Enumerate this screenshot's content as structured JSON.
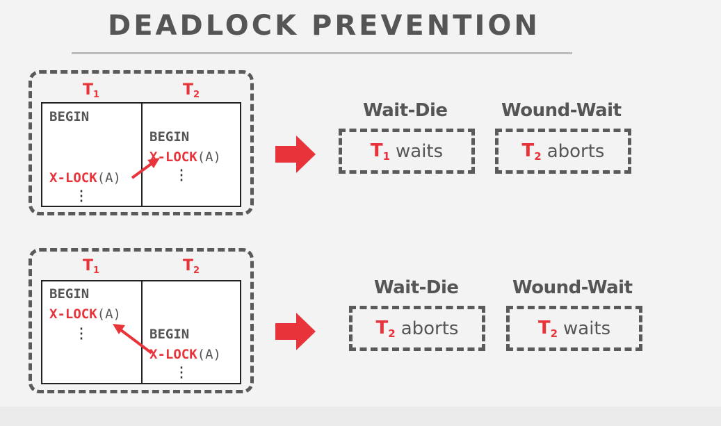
{
  "title": "DEADLOCK PREVENTION",
  "scenarios": [
    {
      "t1_label": "T",
      "t1_sub": "1",
      "t2_label": "T",
      "t2_sub": "2",
      "t1_lines": {
        "begin": "BEGIN",
        "lock_kw": "X-LOCK",
        "lock_arg": "(A)"
      },
      "t2_lines": {
        "begin": "BEGIN",
        "lock_kw": "X-LOCK",
        "lock_arg": "(A)"
      },
      "wait_die_label": "Wait-Die",
      "wound_wait_label": "Wound-Wait",
      "wait_die_result": {
        "txn": "T",
        "sub": "1",
        "action": "waits"
      },
      "wound_wait_result": {
        "txn": "T",
        "sub": "2",
        "action": "aborts"
      }
    },
    {
      "t1_label": "T",
      "t1_sub": "1",
      "t2_label": "T",
      "t2_sub": "2",
      "t1_lines": {
        "begin": "BEGIN",
        "lock_kw": "X-LOCK",
        "lock_arg": "(A)"
      },
      "t2_lines": {
        "begin": "BEGIN",
        "lock_kw": "X-LOCK",
        "lock_arg": "(A)"
      },
      "wait_die_label": "Wait-Die",
      "wound_wait_label": "Wound-Wait",
      "wait_die_result": {
        "txn": "T",
        "sub": "2",
        "action": "aborts"
      },
      "wound_wait_result": {
        "txn": "T",
        "sub": "2",
        "action": "waits"
      }
    }
  ],
  "colors": {
    "accent": "#e8333a",
    "text": "#555555",
    "border": "#5a5a5a",
    "background": "#f3f3f3"
  }
}
